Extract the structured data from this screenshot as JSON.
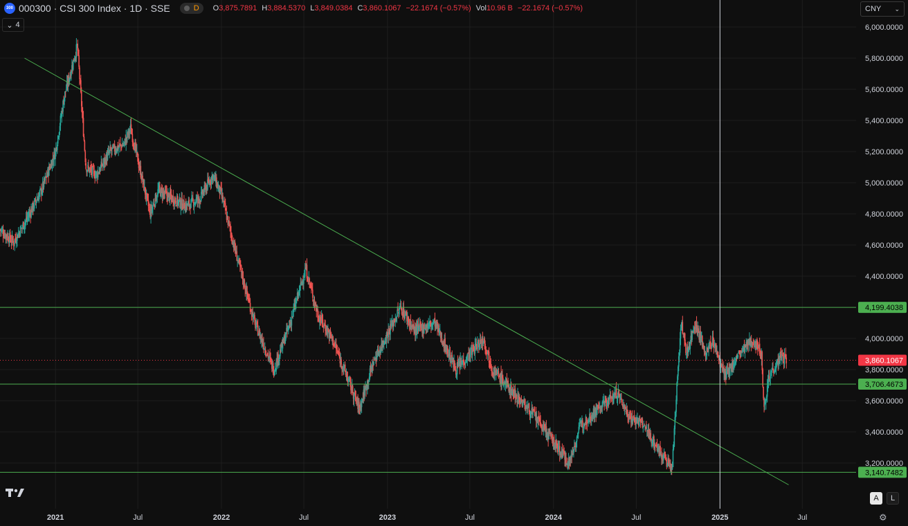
{
  "header": {
    "symbol_title": "000300 · CSI 300 Index · 1D · SSE",
    "logo_text": "300",
    "badge_letter": "D",
    "ohlc": [
      {
        "label": "O",
        "value": "3,875.7891"
      },
      {
        "label": "H",
        "value": "3,884.5370"
      },
      {
        "label": "L",
        "value": "3,849.0384"
      },
      {
        "label": "C",
        "value": "3,860.1067"
      },
      {
        "label": "",
        "value": "−22.1674 (−0.57%)"
      },
      {
        "label": "Vol",
        "value": "10.96 B"
      },
      {
        "label": "",
        "value": "−22.1674 (−0.57%)"
      }
    ]
  },
  "legend_toggle": {
    "count": "4"
  },
  "currency": {
    "selected": "CNY"
  },
  "scale_buttons": {
    "auto": "A",
    "log": "L"
  },
  "colors": {
    "background": "#0f0f0f",
    "grid": "#1e1e1e",
    "up": "#26a69a",
    "down": "#ef5350",
    "hline": "#4caf50",
    "trendline": "#4caf50",
    "last_price": "#f23645",
    "crosshair": "#d1d4dc"
  },
  "chart_data": {
    "type": "candlestick",
    "y_axis": {
      "ylim": [
        3060,
        6060
      ],
      "ticks": [
        3200,
        3400,
        3600,
        3800,
        4000,
        4200,
        4400,
        4600,
        4800,
        5000,
        5200,
        5400,
        5600,
        5800,
        6000
      ],
      "tick_labels": [
        "3,200.0000",
        "3,400.0000",
        "3,600.0000",
        "3,800.0000",
        "4,000.0000",
        "4,200.0000",
        "4,400.0000",
        "4,600.0000",
        "4,800.0000",
        "5,000.0000",
        "5,200.0000",
        "5,400.0000",
        "5,600.0000",
        "5,800.0000",
        "6,000.0000"
      ]
    },
    "x_axis": {
      "xlim": [
        "2020-09-01",
        "2025-09-01"
      ],
      "ticks": [
        {
          "date": "2021-01-01",
          "label": "2021",
          "bold": true
        },
        {
          "date": "2021-07-01",
          "label": "Jul",
          "bold": false
        },
        {
          "date": "2022-01-01",
          "label": "2022",
          "bold": true
        },
        {
          "date": "2022-07-01",
          "label": "Jul",
          "bold": false
        },
        {
          "date": "2023-01-01",
          "label": "2023",
          "bold": true
        },
        {
          "date": "2023-07-01",
          "label": "Jul",
          "bold": false
        },
        {
          "date": "2024-01-01",
          "label": "2024",
          "bold": true
        },
        {
          "date": "2024-07-01",
          "label": "Jul",
          "bold": false
        },
        {
          "date": "2025-01-01",
          "label": "2025",
          "bold": true
        },
        {
          "date": "2025-07-01",
          "label": "Jul",
          "bold": false
        }
      ]
    },
    "price_path": [
      [
        "2020-09-01",
        4700
      ],
      [
        "2020-10-01",
        4620
      ],
      [
        "2020-11-01",
        4780
      ],
      [
        "2020-12-01",
        4950
      ],
      [
        "2021-01-01",
        5200
      ],
      [
        "2021-01-20",
        5550
      ],
      [
        "2021-02-18",
        5880
      ],
      [
        "2021-03-09",
        5100
      ],
      [
        "2021-04-01",
        5050
      ],
      [
        "2021-05-01",
        5200
      ],
      [
        "2021-06-01",
        5250
      ],
      [
        "2021-06-15",
        5350
      ],
      [
        "2021-07-28",
        4800
      ],
      [
        "2021-08-15",
        4950
      ],
      [
        "2021-09-15",
        4900
      ],
      [
        "2021-10-15",
        4850
      ],
      [
        "2021-11-15",
        4900
      ],
      [
        "2021-12-13",
        5050
      ],
      [
        "2022-01-01",
        4920
      ],
      [
        "2022-01-28",
        4600
      ],
      [
        "2022-03-15",
        4100
      ],
      [
        "2022-04-26",
        3800
      ],
      [
        "2022-06-01",
        4100
      ],
      [
        "2022-07-05",
        4450
      ],
      [
        "2022-08-01",
        4150
      ],
      [
        "2022-09-01",
        4000
      ],
      [
        "2022-10-31",
        3550
      ],
      [
        "2022-12-01",
        3850
      ],
      [
        "2023-01-30",
        4200
      ],
      [
        "2023-03-01",
        4050
      ],
      [
        "2023-04-15",
        4100
      ],
      [
        "2023-05-31",
        3800
      ],
      [
        "2023-07-31",
        4000
      ],
      [
        "2023-08-20",
        3800
      ],
      [
        "2023-10-15",
        3620
      ],
      [
        "2023-11-15",
        3520
      ],
      [
        "2024-01-10",
        3300
      ],
      [
        "2024-02-05",
        3200
      ],
      [
        "2024-03-01",
        3450
      ],
      [
        "2024-04-01",
        3530
      ],
      [
        "2024-05-20",
        3650
      ],
      [
        "2024-06-15",
        3500
      ],
      [
        "2024-07-15",
        3450
      ],
      [
        "2024-08-15",
        3300
      ],
      [
        "2024-09-18",
        3160
      ],
      [
        "2024-09-30",
        3800
      ],
      [
        "2024-10-08",
        4100
      ],
      [
        "2024-10-20",
        3900
      ],
      [
        "2024-11-07",
        4100
      ],
      [
        "2024-12-01",
        3900
      ],
      [
        "2024-12-15",
        3990
      ],
      [
        "2025-01-13",
        3750
      ],
      [
        "2025-02-10",
        3890
      ],
      [
        "2025-03-15",
        3990
      ],
      [
        "2025-04-03",
        3900
      ],
      [
        "2025-04-07",
        3550
      ],
      [
        "2025-04-20",
        3770
      ],
      [
        "2025-05-15",
        3880
      ],
      [
        "2025-05-28",
        3860
      ]
    ],
    "horizontal_lines": [
      {
        "price": 4199.4038,
        "label": "4,199.4038"
      },
      {
        "price": 3706.4673,
        "label": "3,706.4673"
      },
      {
        "price": 3140.7482,
        "label": "3,140.7482"
      }
    ],
    "last_price": {
      "price": 3860.1067,
      "label": "3,860.1067"
    },
    "trendline": {
      "from": [
        "2020-10-25",
        5800
      ],
      "to": [
        "2025-06-01",
        3060
      ]
    },
    "crosshair_date": "2025-01-01"
  }
}
